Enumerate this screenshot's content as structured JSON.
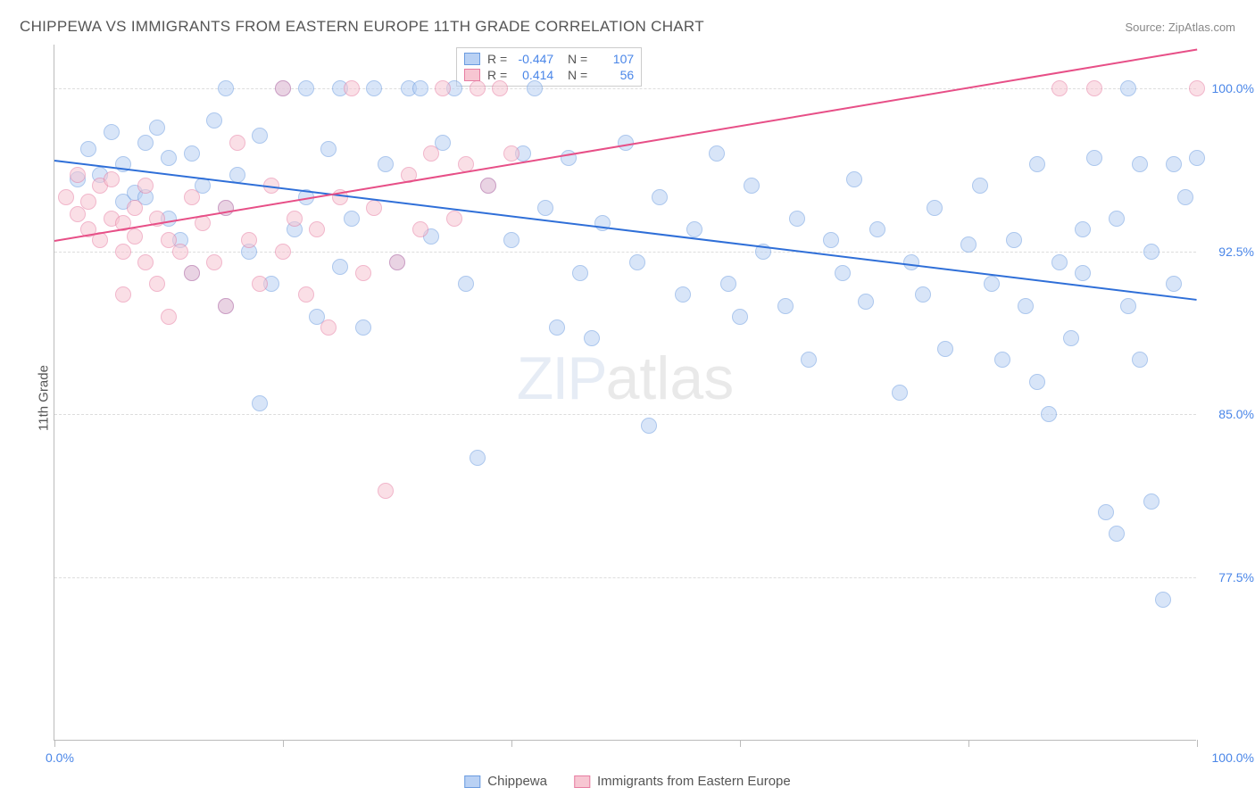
{
  "title": "CHIPPEWA VS IMMIGRANTS FROM EASTERN EUROPE 11TH GRADE CORRELATION CHART",
  "source": "Source: ZipAtlas.com",
  "ylabel": "11th Grade",
  "watermark_zip": "ZIP",
  "watermark_rest": "atlas",
  "chart": {
    "type": "scatter",
    "xlim": [
      0,
      100
    ],
    "ylim": [
      70,
      102
    ],
    "x_ticks": [
      0,
      20,
      40,
      60,
      80,
      100
    ],
    "x_tick_labels": {
      "0": "0.0%",
      "100": "100.0%"
    },
    "y_gridlines": [
      77.5,
      85.0,
      92.5,
      100.0
    ],
    "y_tick_labels": [
      "77.5%",
      "85.0%",
      "92.5%",
      "100.0%"
    ],
    "background_color": "#ffffff",
    "grid_color": "#dddddd",
    "axis_color": "#bbbbbb",
    "series": [
      {
        "name": "Chippewa",
        "fill": "#b9d1f4",
        "stroke": "#6a9be0",
        "fill_opacity": 0.55,
        "marker_r": 9,
        "trend": {
          "x1": 0,
          "y1": 96.7,
          "x2": 100,
          "y2": 90.3,
          "color": "#2f6fd8",
          "width": 2
        },
        "R": "-0.447",
        "N": "107",
        "points": [
          [
            2,
            95.8
          ],
          [
            3,
            97.2
          ],
          [
            4,
            96.0
          ],
          [
            5,
            98.0
          ],
          [
            6,
            96.5
          ],
          [
            6,
            94.8
          ],
          [
            7,
            95.2
          ],
          [
            8,
            97.5
          ],
          [
            8,
            95.0
          ],
          [
            9,
            98.2
          ],
          [
            10,
            94.0
          ],
          [
            10,
            96.8
          ],
          [
            11,
            93.0
          ],
          [
            12,
            97.0
          ],
          [
            12,
            91.5
          ],
          [
            13,
            95.5
          ],
          [
            14,
            98.5
          ],
          [
            15,
            94.5
          ],
          [
            15,
            90.0
          ],
          [
            16,
            96.0
          ],
          [
            17,
            92.5
          ],
          [
            18,
            85.5
          ],
          [
            18,
            97.8
          ],
          [
            19,
            91.0
          ],
          [
            20,
            100.0
          ],
          [
            21,
            93.5
          ],
          [
            22,
            95.0
          ],
          [
            23,
            89.5
          ],
          [
            24,
            97.2
          ],
          [
            25,
            100.0
          ],
          [
            25,
            91.8
          ],
          [
            26,
            94.0
          ],
          [
            27,
            89.0
          ],
          [
            28,
            100.0
          ],
          [
            29,
            96.5
          ],
          [
            30,
            92.0
          ],
          [
            31,
            100.0
          ],
          [
            32,
            100.0
          ],
          [
            33,
            93.2
          ],
          [
            34,
            97.5
          ],
          [
            35,
            100.0
          ],
          [
            36,
            91.0
          ],
          [
            37,
            83.0
          ],
          [
            38,
            95.5
          ],
          [
            40,
            93.0
          ],
          [
            41,
            97.0
          ],
          [
            42,
            100.0
          ],
          [
            43,
            94.5
          ],
          [
            44,
            89.0
          ],
          [
            45,
            96.8
          ],
          [
            46,
            91.5
          ],
          [
            47,
            88.5
          ],
          [
            48,
            93.8
          ],
          [
            50,
            97.5
          ],
          [
            51,
            92.0
          ],
          [
            52,
            84.5
          ],
          [
            53,
            95.0
          ],
          [
            55,
            90.5
          ],
          [
            56,
            93.5
          ],
          [
            58,
            97.0
          ],
          [
            59,
            91.0
          ],
          [
            60,
            89.5
          ],
          [
            61,
            95.5
          ],
          [
            62,
            92.5
          ],
          [
            64,
            90.0
          ],
          [
            65,
            94.0
          ],
          [
            66,
            87.5
          ],
          [
            68,
            93.0
          ],
          [
            69,
            91.5
          ],
          [
            70,
            95.8
          ],
          [
            71,
            90.2
          ],
          [
            72,
            93.5
          ],
          [
            74,
            86.0
          ],
          [
            75,
            92.0
          ],
          [
            76,
            90.5
          ],
          [
            77,
            94.5
          ],
          [
            78,
            88.0
          ],
          [
            80,
            92.8
          ],
          [
            81,
            95.5
          ],
          [
            82,
            91.0
          ],
          [
            83,
            87.5
          ],
          [
            84,
            93.0
          ],
          [
            85,
            90.0
          ],
          [
            86,
            96.5
          ],
          [
            87,
            85.0
          ],
          [
            88,
            92.0
          ],
          [
            89,
            88.5
          ],
          [
            90,
            91.5
          ],
          [
            91,
            96.8
          ],
          [
            92,
            80.5
          ],
          [
            93,
            79.5
          ],
          [
            93,
            94.0
          ],
          [
            94,
            90.0
          ],
          [
            95,
            96.5
          ],
          [
            95,
            87.5
          ],
          [
            96,
            81.0
          ],
          [
            96,
            92.5
          ],
          [
            97,
            76.5
          ],
          [
            98,
            91.0
          ],
          [
            98,
            96.5
          ],
          [
            99,
            95.0
          ],
          [
            100,
            96.8
          ],
          [
            94,
            100.0
          ],
          [
            15,
            100.0
          ],
          [
            22,
            100.0
          ],
          [
            86,
            86.5
          ],
          [
            90,
            93.5
          ]
        ]
      },
      {
        "name": "Immigrants from Eastern Europe",
        "fill": "#f7c6d2",
        "stroke": "#e77ca1",
        "fill_opacity": 0.55,
        "marker_r": 9,
        "trend": {
          "x1": 0,
          "y1": 93.0,
          "x2": 100,
          "y2": 101.8,
          "color": "#e74f87",
          "width": 2
        },
        "R": "0.414",
        "N": "56",
        "points": [
          [
            1,
            95.0
          ],
          [
            2,
            94.2
          ],
          [
            2,
            96.0
          ],
          [
            3,
            94.8
          ],
          [
            3,
            93.5
          ],
          [
            4,
            95.5
          ],
          [
            4,
            93.0
          ],
          [
            5,
            94.0
          ],
          [
            5,
            95.8
          ],
          [
            6,
            92.5
          ],
          [
            6,
            90.5
          ],
          [
            7,
            94.5
          ],
          [
            7,
            93.2
          ],
          [
            8,
            92.0
          ],
          [
            8,
            95.5
          ],
          [
            9,
            91.0
          ],
          [
            9,
            94.0
          ],
          [
            10,
            93.0
          ],
          [
            10,
            89.5
          ],
          [
            11,
            92.5
          ],
          [
            12,
            95.0
          ],
          [
            12,
            91.5
          ],
          [
            13,
            93.8
          ],
          [
            14,
            92.0
          ],
          [
            15,
            90.0
          ],
          [
            15,
            94.5
          ],
          [
            16,
            97.5
          ],
          [
            17,
            93.0
          ],
          [
            18,
            91.0
          ],
          [
            19,
            95.5
          ],
          [
            20,
            92.5
          ],
          [
            20,
            100.0
          ],
          [
            21,
            94.0
          ],
          [
            22,
            90.5
          ],
          [
            23,
            93.5
          ],
          [
            24,
            89.0
          ],
          [
            25,
            95.0
          ],
          [
            26,
            100.0
          ],
          [
            27,
            91.5
          ],
          [
            28,
            94.5
          ],
          [
            29,
            81.5
          ],
          [
            30,
            92.0
          ],
          [
            31,
            96.0
          ],
          [
            32,
            93.5
          ],
          [
            33,
            97.0
          ],
          [
            34,
            100.0
          ],
          [
            35,
            94.0
          ],
          [
            36,
            96.5
          ],
          [
            37,
            100.0
          ],
          [
            38,
            95.5
          ],
          [
            39,
            100.0
          ],
          [
            40,
            97.0
          ],
          [
            88,
            100.0
          ],
          [
            91,
            100.0
          ],
          [
            100,
            100.0
          ],
          [
            6,
            93.8
          ]
        ]
      }
    ]
  },
  "bottom_legend": [
    "Chippewa",
    "Immigrants from Eastern Europe"
  ]
}
